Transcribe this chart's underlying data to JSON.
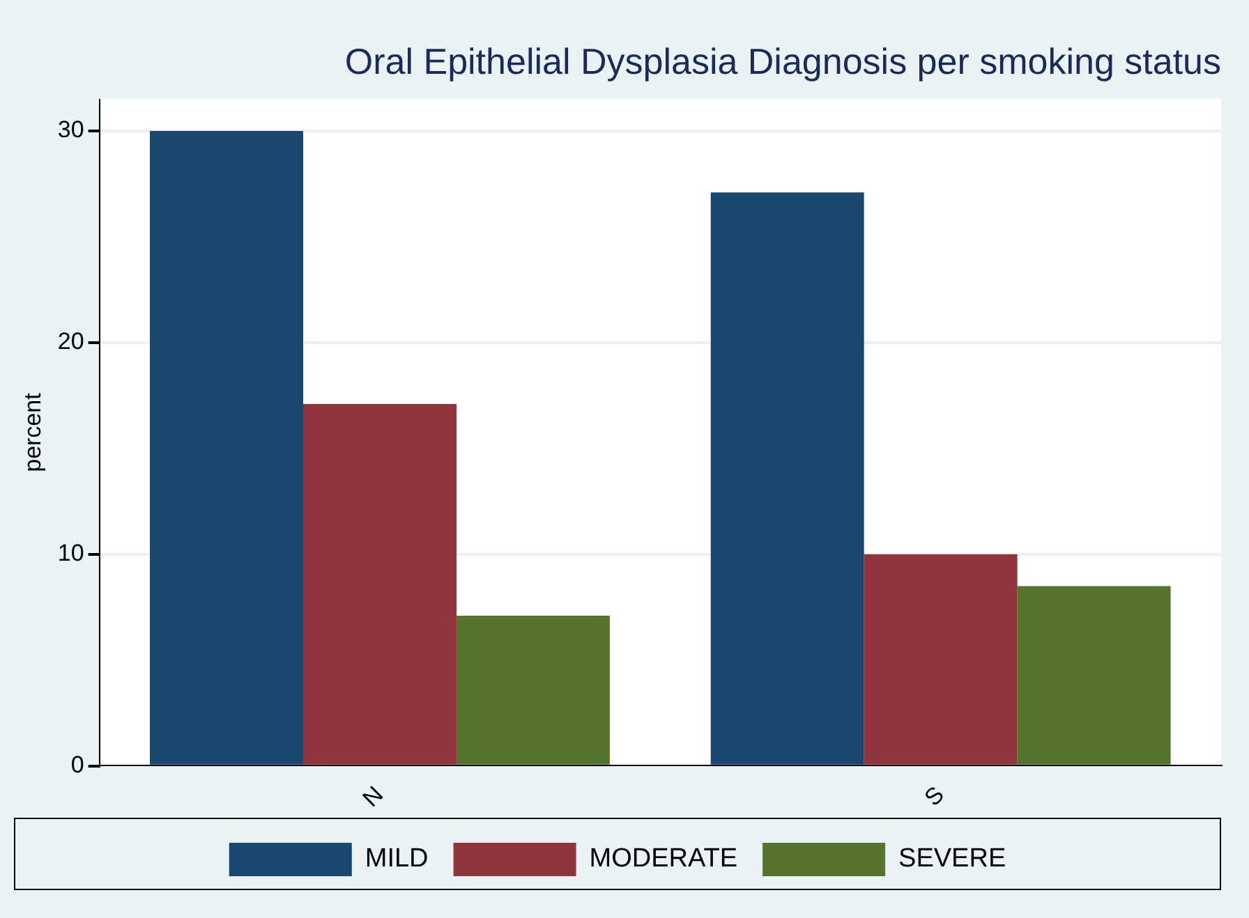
{
  "chart_data": {
    "type": "bar",
    "title": "Oral Epithelial Dysplasia Diagnosis per smoking status",
    "ylabel": "percent",
    "categories": [
      "N",
      "S"
    ],
    "series": [
      {
        "name": "MILD",
        "color": "#1a476f",
        "values": [
          30,
          27.1
        ]
      },
      {
        "name": "MODERATE",
        "color": "#90353b",
        "values": [
          17.1,
          10
        ]
      },
      {
        "name": "SEVERE",
        "color": "#55752f",
        "values": [
          7.1,
          8.5
        ]
      }
    ],
    "ylim": [
      0,
      31.5
    ],
    "yticks": [
      0,
      10,
      20,
      30
    ],
    "grid": "y",
    "legend": "bottom"
  }
}
